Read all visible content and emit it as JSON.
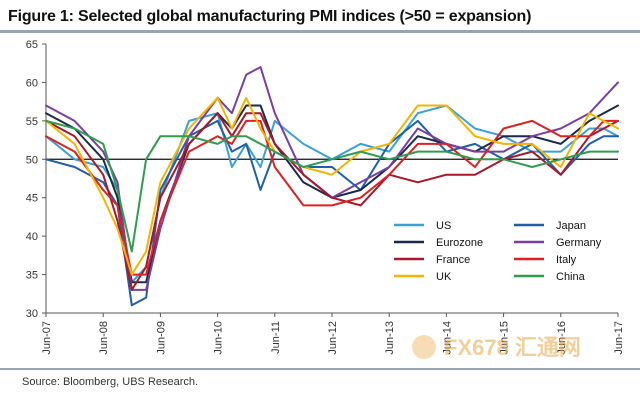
{
  "title": "Figure 1: Selected global manufacturing PMI indices (>50 = expansion)",
  "source": "Source:  Bloomberg, UBS Research.",
  "watermark": "FX678 汇通网",
  "chart_data": {
    "type": "line",
    "title": "Figure 1: Selected global manufacturing PMI indices (>50 = expansion)",
    "xlabel": "",
    "ylabel": "",
    "ylim": [
      30,
      65
    ],
    "yticks": [
      30,
      35,
      40,
      45,
      50,
      55,
      60,
      65
    ],
    "x_range": [
      "2007-06",
      "2017-06"
    ],
    "x_tick_labels": [
      "Jun-07",
      "Jun-08",
      "Jun-09",
      "Jun-10",
      "Jun-11",
      "Jun-12",
      "Jun-13",
      "Jun-14",
      "Jun-15",
      "Jun-16",
      "Jun-17"
    ],
    "reference_line": 50,
    "legend_position": "center-right",
    "x": [
      "Jun-07",
      "Dec-07",
      "Jun-08",
      "Sep-08",
      "Dec-08",
      "Mar-09",
      "Jun-09",
      "Dec-09",
      "Jun-10",
      "Sep-10",
      "Dec-10",
      "Mar-11",
      "Jun-11",
      "Dec-11",
      "Jun-12",
      "Dec-12",
      "Jun-13",
      "Dec-13",
      "Jun-14",
      "Dec-14",
      "Jun-15",
      "Dec-15",
      "Jun-16",
      "Dec-16",
      "Mar-17",
      "Jun-17"
    ],
    "series": [
      {
        "name": "US",
        "color": "#3aa0d8",
        "values": [
          53,
          50,
          49,
          46,
          34,
          36,
          45,
          55,
          56,
          49,
          52,
          49,
          55,
          52,
          50,
          52,
          51,
          56,
          57,
          54,
          53,
          51,
          51,
          54,
          54,
          53
        ]
      },
      {
        "name": "Japan",
        "color": "#1f5fa8",
        "values": [
          50,
          49,
          47,
          44,
          31,
          32,
          46,
          53,
          55,
          51,
          52,
          46,
          51,
          49,
          49,
          46,
          52,
          55,
          51,
          52,
          50,
          52,
          48,
          52,
          53,
          53
        ]
      },
      {
        "name": "Eurozone",
        "color": "#1b2a4a",
        "values": [
          56,
          54,
          50,
          45,
          34,
          34,
          42,
          52,
          56,
          54,
          57,
          57,
          52,
          47,
          45,
          46,
          49,
          53,
          52,
          51,
          53,
          53,
          52,
          55,
          56,
          57
        ]
      },
      {
        "name": "Germany",
        "color": "#7a3fa0",
        "values": [
          57,
          55,
          51,
          47,
          33,
          33,
          41,
          53,
          58,
          56,
          61,
          62,
          56,
          48,
          45,
          47,
          49,
          54,
          52,
          51,
          51,
          53,
          54,
          56,
          58,
          60
        ]
      },
      {
        "name": "France",
        "color": "#a8182a",
        "values": [
          55,
          53,
          48,
          42,
          33,
          36,
          45,
          52,
          56,
          53,
          56,
          56,
          52,
          48,
          45,
          44,
          48,
          47,
          48,
          48,
          50,
          51,
          48,
          53,
          54,
          55
        ]
      },
      {
        "name": "Italy",
        "color": "#e02020",
        "values": [
          53,
          51,
          46,
          44,
          35,
          35,
          42,
          51,
          53,
          52,
          55,
          55,
          49,
          44,
          44,
          45,
          48,
          52,
          52,
          49,
          54,
          55,
          53,
          53,
          55,
          55
        ]
      },
      {
        "name": "UK",
        "color": "#f5b400",
        "values": [
          55,
          52,
          45,
          41,
          35,
          38,
          47,
          54,
          58,
          54,
          58,
          54,
          51,
          49,
          48,
          51,
          52,
          57,
          57,
          53,
          52,
          52,
          49,
          56,
          55,
          54
        ]
      },
      {
        "name": "China",
        "color": "#2e9d4f",
        "values": [
          55,
          54,
          52,
          46,
          38,
          50,
          53,
          53,
          52,
          53,
          53,
          52,
          51,
          49,
          50,
          51,
          50,
          51,
          51,
          50,
          50,
          49,
          50,
          51,
          51,
          51
        ]
      }
    ]
  }
}
